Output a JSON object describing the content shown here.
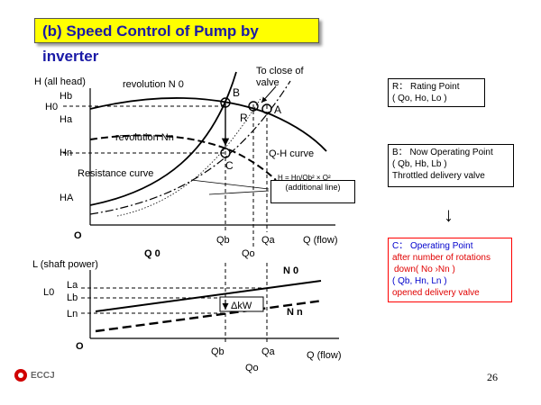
{
  "title": "(b) Speed Control of Pump by inverter",
  "top_graph": {
    "y_axis_label": "H (all head)",
    "origin": "O",
    "x_axis_label": "Q (flow)",
    "q0_label": "Q 0",
    "y_ticks": {
      "hb": "Hb",
      "h0": "H0",
      "ha": "Ha",
      "hn": "Hn",
      "hA": "HA"
    },
    "x_ticks": {
      "qb": "Qb",
      "qa": "Qa",
      "qo": "Qo"
    },
    "curve_labels": {
      "rev_n0": "revolution N 0",
      "rev_nn": "revolution Nn",
      "resistance": "Resistance curve",
      "qh": "Q-H curve",
      "close_valve": "To close of valve",
      "formula": "H = Hn/Qb² × Q²",
      "additional": "(additional line)"
    },
    "points": {
      "b": "B",
      "r": "R",
      "a": "A",
      "c": "C"
    }
  },
  "bottom_graph": {
    "y_axis_label": "L (shaft power)",
    "origin": "O",
    "x_axis_label": "Q (flow)",
    "y_ticks": {
      "la": "La",
      "l0": "L0",
      "lb": "Lb",
      "ln": "Ln"
    },
    "x_ticks": {
      "qb": "Qb",
      "qa": "Qa",
      "qo": "Qo"
    },
    "curve_labels": {
      "n0": "N 0",
      "nn": "N n",
      "dkw": "ΔkW"
    }
  },
  "legend": {
    "r": {
      "line1": "R： Rating Point",
      "line2": "( Qo, Ho, Lo )"
    },
    "b": {
      "line1": "B： Now Operating Point",
      "line2": "( Qb, Hb, Lb )",
      "line3": "Throttled delivery valve"
    },
    "c": {
      "line1": "C： Operating Point",
      "line2": "after number of rotations",
      "line3": "down( No  ›Nn )",
      "line4": "( Qb, Hn, Ln )",
      "line5": "opened delivery valve"
    },
    "arrow": "↓"
  },
  "footer": {
    "logo_text": "ECCJ",
    "page_number": "26"
  }
}
